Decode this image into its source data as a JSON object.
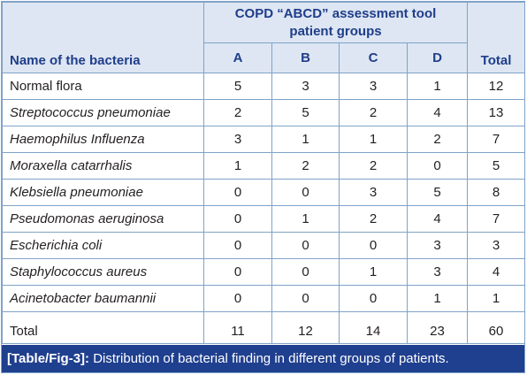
{
  "header": {
    "group_title_line1": "COPD “ABCD” assessment tool",
    "group_title_line2": "patient groups",
    "name_col": "Name of the bacteria",
    "groups": [
      "A",
      "B",
      "C",
      "D"
    ],
    "total_col": "Total"
  },
  "rows": [
    {
      "name": "Normal flora",
      "italic": false,
      "values": [
        "5",
        "3",
        "3",
        "1",
        "12"
      ]
    },
    {
      "name": "Streptococcus pneumoniae",
      "italic": true,
      "values": [
        "2",
        "5",
        "2",
        "4",
        "13"
      ]
    },
    {
      "name": "Haemophilus Influenza",
      "italic": true,
      "values": [
        "3",
        "1",
        "1",
        "2",
        "7"
      ]
    },
    {
      "name": "Moraxella catarrhalis",
      "italic": true,
      "values": [
        "1",
        "2",
        "2",
        "0",
        "5"
      ]
    },
    {
      "name": "Klebsiella pneumoniae",
      "italic": true,
      "values": [
        "0",
        "0",
        "3",
        "5",
        "8"
      ]
    },
    {
      "name": "Pseudomonas aeruginosa",
      "italic": true,
      "values": [
        "0",
        "1",
        "2",
        "4",
        "7"
      ]
    },
    {
      "name": "Escherichia coli",
      "italic": true,
      "values": [
        "0",
        "0",
        "0",
        "3",
        "3"
      ]
    },
    {
      "name": "Staphylococcus aureus",
      "italic": true,
      "values": [
        "0",
        "0",
        "1",
        "3",
        "4"
      ]
    },
    {
      "name": "Acinetobacter baumannii",
      "italic": true,
      "values": [
        "0",
        "0",
        "0",
        "1",
        "1"
      ]
    }
  ],
  "total_row": {
    "label": "Total",
    "values": [
      "11",
      "12",
      "14",
      "23",
      "60"
    ]
  },
  "caption": {
    "ref": "[Table/Fig-3]:",
    "text": " Distribution of bacterial finding in different groups of patients."
  },
  "colors": {
    "header_bg": "#dde6f2",
    "header_text": "#1f3d8a",
    "border": "#7fa3c9",
    "caption_bg": "#1f3f8f"
  }
}
